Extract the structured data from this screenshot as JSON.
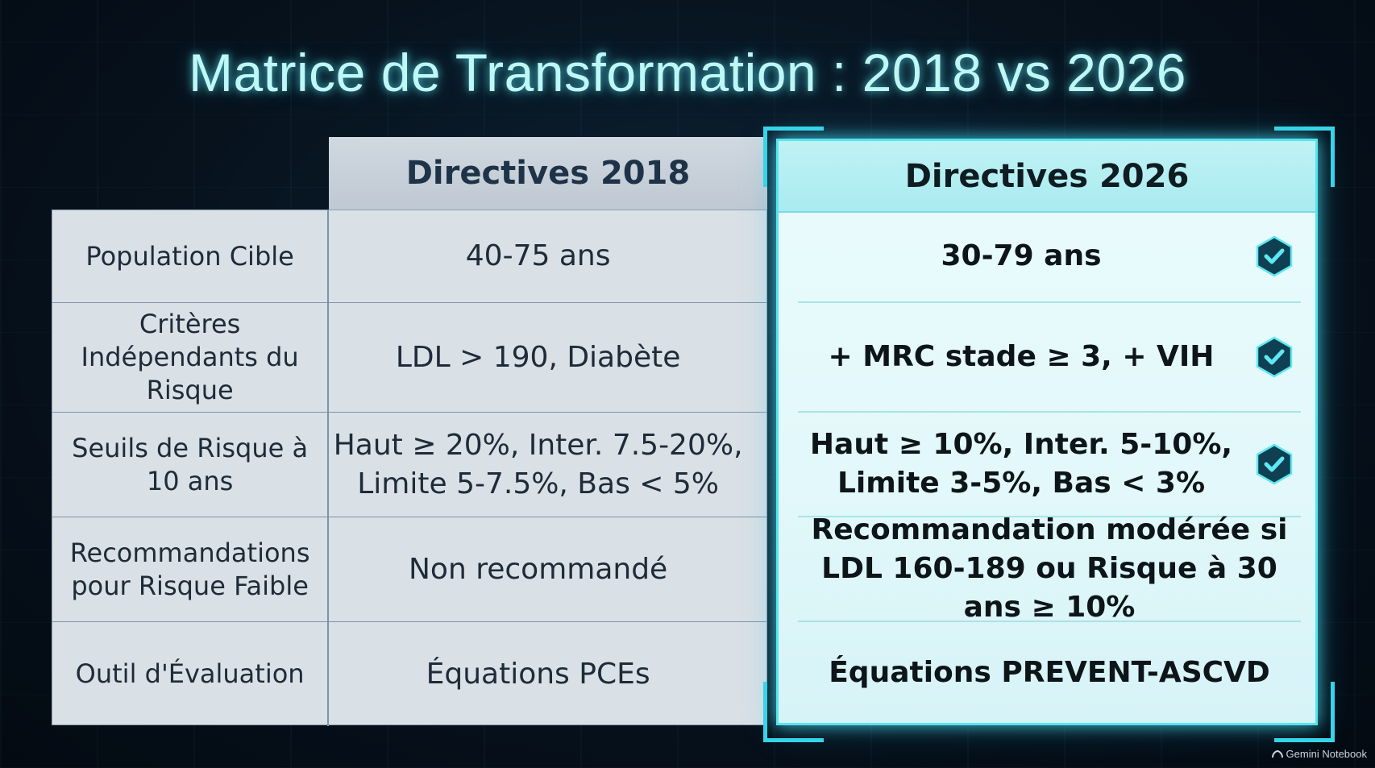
{
  "title": "Matrice de Transformation : 2018 vs 2026",
  "columns": {
    "col2018": "Directives 2018",
    "col2026": "Directives 2026"
  },
  "rows": [
    {
      "label": "Population Cible",
      "v2018": "40-75 ans",
      "v2026": "30-79 ans",
      "check": true
    },
    {
      "label": "Critères Indépendants du Risque",
      "v2018": "LDL > 190, Diabète",
      "v2026": "+ MRC stade ≥ 3, + VIH",
      "check": true
    },
    {
      "label": "Seuils de Risque à 10 ans",
      "v2018": "Haut ≥ 20%, Inter. 7.5-20%, Limite 5-7.5%, Bas < 5%",
      "v2026": "Haut ≥ 10%, Inter. 5-10%, Limite 3-5%, Bas < 3%",
      "check": true
    },
    {
      "label": "Recommandations pour Risque Faible",
      "v2018": "Non recommandé",
      "v2026": "Recommandation modérée si LDL 160-189 ou Risque à 30 ans ≥ 10%",
      "check": false
    },
    {
      "label": "Outil d'Évaluation",
      "v2018": "Équations PCEs",
      "v2026": "Équations PREVENT-ASCVD",
      "check": false
    }
  ],
  "watermark": "Gemini Notebook",
  "colors": {
    "accent": "#57e4ef",
    "check_fill": "#0f3f52",
    "check_mark": "#5fe8f2"
  },
  "icons": {
    "check": "shield-check-icon"
  }
}
